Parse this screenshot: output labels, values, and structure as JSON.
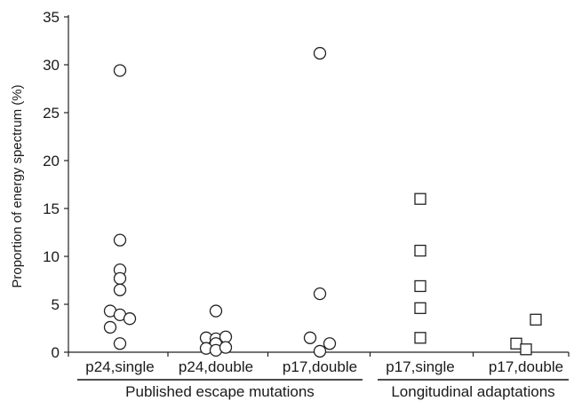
{
  "chart_data": {
    "type": "scatter",
    "ylabel": "Proportion of energy spectrum (%)",
    "ylim": [
      0,
      35
    ],
    "yticks": [
      0,
      5,
      10,
      15,
      20,
      25,
      30,
      35
    ],
    "grid": false,
    "categories": [
      "p24,single",
      "p24,double",
      "p17,double",
      "p17,single",
      "p17,double"
    ],
    "groups": [
      {
        "label": "Published escape mutations",
        "categories": [
          0,
          1,
          2
        ]
      },
      {
        "label": "Longitudinal adaptations",
        "categories": [
          3,
          4
        ]
      }
    ],
    "series": [
      {
        "marker": "circle",
        "points": [
          {
            "category": 0,
            "offset": 0,
            "y": 29.4
          },
          {
            "category": 0,
            "offset": 0,
            "y": 11.7
          },
          {
            "category": 0,
            "offset": 0,
            "y": 8.6
          },
          {
            "category": 0,
            "offset": 0,
            "y": 7.7
          },
          {
            "category": 0,
            "offset": 0,
            "y": 6.5
          },
          {
            "category": 0,
            "offset": -1,
            "y": 4.3
          },
          {
            "category": 0,
            "offset": 0,
            "y": 3.9
          },
          {
            "category": 0,
            "offset": 1,
            "y": 3.5
          },
          {
            "category": 0,
            "offset": -1,
            "y": 2.6
          },
          {
            "category": 0,
            "offset": 0,
            "y": 0.9
          },
          {
            "category": 1,
            "offset": 0,
            "y": 4.3
          },
          {
            "category": 1,
            "offset": -1,
            "y": 1.5
          },
          {
            "category": 1,
            "offset": 0,
            "y": 1.4
          },
          {
            "category": 1,
            "offset": 1,
            "y": 1.6
          },
          {
            "category": 1,
            "offset": 0,
            "y": 0.9
          },
          {
            "category": 1,
            "offset": -1,
            "y": 0.4
          },
          {
            "category": 1,
            "offset": 0,
            "y": 0.2
          },
          {
            "category": 1,
            "offset": 1,
            "y": 0.5
          },
          {
            "category": 2,
            "offset": 0,
            "y": 31.2
          },
          {
            "category": 2,
            "offset": 0,
            "y": 6.1
          },
          {
            "category": 2,
            "offset": -1,
            "y": 1.5
          },
          {
            "category": 2,
            "offset": 1,
            "y": 0.9
          },
          {
            "category": 2,
            "offset": 0,
            "y": 0.1
          }
        ]
      },
      {
        "marker": "square",
        "points": [
          {
            "category": 3,
            "offset": 0,
            "y": 16.0
          },
          {
            "category": 3,
            "offset": 0,
            "y": 10.6
          },
          {
            "category": 3,
            "offset": 0,
            "y": 6.9
          },
          {
            "category": 3,
            "offset": 0,
            "y": 4.6
          },
          {
            "category": 3,
            "offset": 0,
            "y": 1.5
          },
          {
            "category": 4,
            "offset": 1,
            "y": 3.4
          },
          {
            "category": 4,
            "offset": -1,
            "y": 0.9
          },
          {
            "category": 4,
            "offset": 0,
            "y": 0.3
          }
        ]
      }
    ]
  }
}
